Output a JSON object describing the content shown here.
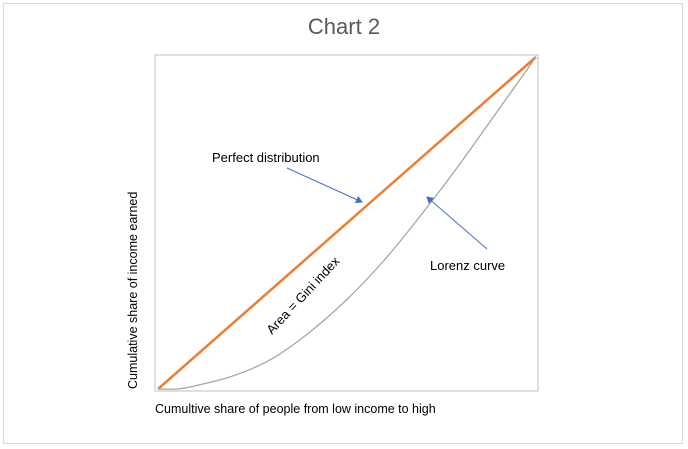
{
  "chart_data": {
    "type": "line",
    "title": "Chart 2",
    "xlabel": "Cumultive share of people from low income to high",
    "ylabel": "Cumulative share of income earned",
    "xlim": [
      0,
      1
    ],
    "ylim": [
      0,
      1
    ],
    "grid": false,
    "legend": "none",
    "series": [
      {
        "x": [
          0,
          1
        ],
        "y": [
          0,
          1
        ],
        "color": "#ed7d31"
      },
      {
        "x": [
          0,
          0.05,
          0.1,
          0.2,
          0.3,
          0.4,
          0.5,
          0.6,
          0.7,
          0.8,
          0.9,
          1.0
        ],
        "y": [
          0,
          0.0,
          0.01,
          0.04,
          0.09,
          0.17,
          0.27,
          0.39,
          0.53,
          0.68,
          0.84,
          1.0
        ],
        "color": "#a6a6a6"
      }
    ],
    "annotations": [
      {
        "text": "Perfect distribution",
        "points_to": "perfect-line"
      },
      {
        "text": "Lorenz curve",
        "points_to": "lorenz-curve"
      },
      {
        "text": "Area = Gini index"
      }
    ]
  },
  "colors": {
    "perfect_line": "#ed7d31",
    "lorenz_line": "#a6a6a6",
    "arrow": "#4472c4",
    "axis": "#bfbfbf"
  }
}
